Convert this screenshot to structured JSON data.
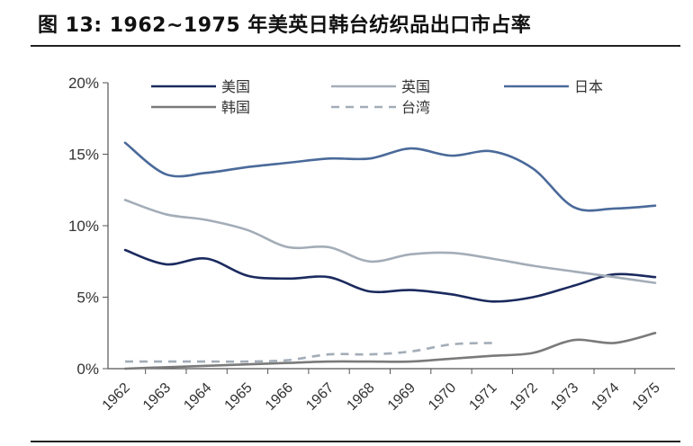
{
  "title": "图 13:  1962~1975 年美英日韩台纺织品出口市占率",
  "chart_data": {
    "type": "line",
    "x": [
      "1962",
      "1963",
      "1964",
      "1965",
      "1966",
      "1967",
      "1968",
      "1969",
      "1970",
      "1971",
      "1972",
      "1973",
      "1974",
      "1975"
    ],
    "ylim": [
      0,
      20
    ],
    "yticks": [
      "0%",
      "5%",
      "10%",
      "15%",
      "20%"
    ],
    "ytick_values": [
      0,
      5,
      10,
      15,
      20
    ],
    "grid": false,
    "legend_position": "top",
    "series": [
      {
        "name": "美国",
        "color": "#1b2a5e",
        "dash": false,
        "values": [
          8.3,
          7.3,
          7.7,
          6.5,
          6.3,
          6.4,
          5.4,
          5.5,
          5.2,
          4.7,
          5.0,
          5.8,
          6.6,
          6.4
        ]
      },
      {
        "name": "英国",
        "color": "#a3adb8",
        "dash": false,
        "values": [
          11.8,
          10.8,
          10.4,
          9.7,
          8.5,
          8.5,
          7.5,
          8.0,
          8.1,
          7.7,
          7.2,
          6.8,
          6.4,
          6.0
        ]
      },
      {
        "name": "日本",
        "color": "#4a6a9a",
        "dash": false,
        "values": [
          15.8,
          13.6,
          13.7,
          14.1,
          14.4,
          14.7,
          14.7,
          15.4,
          14.9,
          15.2,
          14.0,
          11.3,
          11.2,
          11.4
        ]
      },
      {
        "name": "韩国",
        "color": "#7a7a7a",
        "dash": false,
        "values": [
          0.0,
          0.1,
          0.2,
          0.3,
          0.4,
          0.5,
          0.5,
          0.5,
          0.7,
          0.9,
          1.1,
          2.0,
          1.8,
          2.5
        ]
      },
      {
        "name": "台湾",
        "color": "#a3adb8",
        "dash": true,
        "values": [
          0.5,
          0.5,
          0.5,
          0.5,
          0.6,
          1.0,
          1.0,
          1.2,
          1.7,
          1.8,
          null,
          null,
          null,
          null
        ]
      }
    ]
  }
}
